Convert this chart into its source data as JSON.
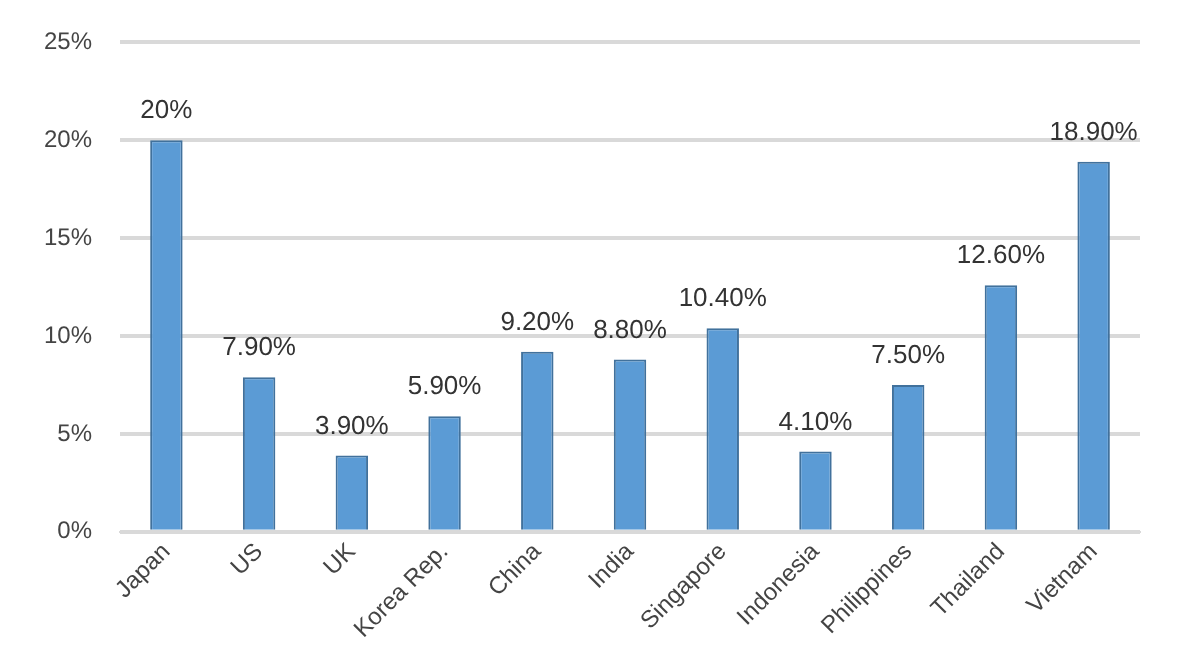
{
  "chart_data": {
    "type": "bar",
    "categories": [
      "Japan",
      "US",
      "UK",
      "Korea Rep.",
      "China",
      "India",
      "Singapore",
      "Indonesia",
      "Philippines",
      "Thailand",
      "Vietnam"
    ],
    "values": [
      20,
      7.9,
      3.9,
      5.9,
      9.2,
      8.8,
      10.4,
      4.1,
      7.5,
      12.6,
      18.9
    ],
    "value_labels": [
      "20%",
      "7.90%",
      "3.90%",
      "5.90%",
      "9.20%",
      "8.80%",
      "10.40%",
      "4.10%",
      "7.50%",
      "12.60%",
      "18.90%"
    ],
    "color": "#5b9bd5",
    "ylim": [
      0,
      25
    ],
    "yticks": [
      {
        "value": 0,
        "label": "0%"
      },
      {
        "value": 5,
        "label": "5%"
      },
      {
        "value": 10,
        "label": "10%"
      },
      {
        "value": 15,
        "label": "15%"
      },
      {
        "value": 20,
        "label": "20%"
      },
      {
        "value": 25,
        "label": "25%"
      }
    ],
    "grid": "y",
    "legend": false
  }
}
